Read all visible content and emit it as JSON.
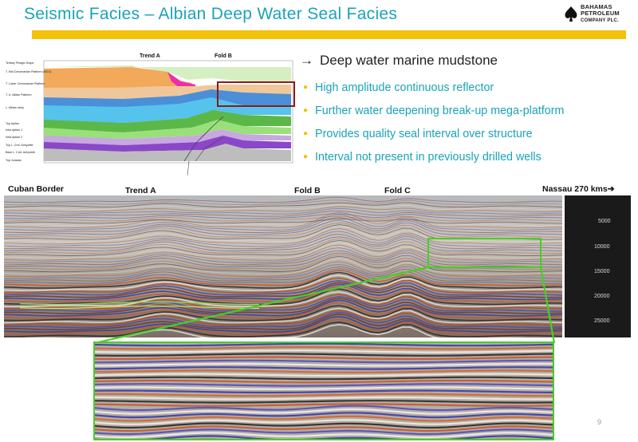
{
  "header": {
    "title": "Seismic Facies – Albian Deep Water Seal Facies",
    "logo_lines": [
      "BAHAMAS",
      "PETROLEUM",
      "COMPANY PLC."
    ]
  },
  "diagram": {
    "label_trend_a": "Trend A",
    "label_fold_b": "Fold B",
    "layer_labels": [
      "Tertiary Pelagic Drape",
      "T. Mid-Cenomanian Platform (MCU)",
      "T. Lower Cenomanian Platform",
      "T. U. Albian Platform",
      "L. Albian ramp",
      "Top Aptian",
      "Intra Aptian 1",
      "Intra Aptian 2",
      "Top L. Cret. Anhydrite",
      "Base L. Cret. Anhydrite",
      "Top Jurassic"
    ],
    "colors": [
      "#f2a95a",
      "#ee2ea8",
      "#f0c79a",
      "#4a8fd8",
      "#56c3ec",
      "#5bb848",
      "#9ae07a",
      "#c8a8e0",
      "#8a47c8",
      "#c8c8c8",
      "#a8a8a8"
    ]
  },
  "content": {
    "heading_arrow": "→",
    "heading": "Deep water marine mudstone",
    "bullets": [
      "High amplitude continuous reflector",
      "Further water deepening break-up mega-platform",
      "Provides quality seal interval over structure",
      "Interval not present in previously drilled wells"
    ]
  },
  "seismic_labels": {
    "cuban_border": "Cuban Border",
    "trend_a": "Trend A",
    "fold_b": "Fold B",
    "fold_c": "Fold C",
    "nassau": "Nassau  270 kms",
    "arrow": "➔"
  },
  "depth_scale": [
    "5000",
    "10000",
    "15000",
    "20000",
    "25000"
  ],
  "highlight_color": "#44d026",
  "page_number": "9"
}
